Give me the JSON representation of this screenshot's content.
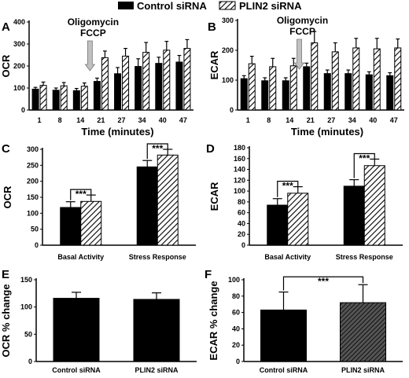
{
  "legend": {
    "items": [
      {
        "label": "Control siRNA",
        "pattern": "solid"
      },
      {
        "label": "PLIN2 siRNA",
        "pattern": "hatched"
      }
    ]
  },
  "colors": {
    "control": "#000000",
    "plin2_hatch": "#000000",
    "arrow": "#c0c0c0",
    "background": "#ffffff"
  },
  "chart_data": [
    {
      "panel": "A",
      "type": "bar",
      "ylabel": "OCR",
      "xlabel": "Time (minutes)",
      "ylim": [
        0,
        400
      ],
      "yticks": [
        0,
        100,
        200,
        300,
        400
      ],
      "categories": [
        "1",
        "8",
        "14",
        "21",
        "27",
        "34",
        "40",
        "47"
      ],
      "series": [
        {
          "name": "Control siRNA",
          "values": [
            95,
            90,
            88,
            130,
            165,
            198,
            212,
            218
          ],
          "errors": [
            8,
            10,
            10,
            15,
            28,
            35,
            28,
            30
          ]
        },
        {
          "name": "PLIN2 siRNA",
          "values": [
            112,
            110,
            108,
            238,
            245,
            262,
            272,
            280
          ],
          "errors": [
            15,
            15,
            15,
            30,
            35,
            45,
            40,
            40
          ]
        }
      ],
      "annotation": {
        "lines": [
          "Oligomycin",
          "FCCP"
        ],
        "arrow_before_category": "21"
      }
    },
    {
      "panel": "B",
      "type": "bar",
      "ylabel": "ECAR",
      "xlabel": "Time (minutes)",
      "ylim": [
        0,
        300
      ],
      "yticks": [
        0,
        100,
        200,
        300
      ],
      "categories": [
        "1",
        "8",
        "14",
        "21",
        "27",
        "34",
        "40",
        "47"
      ],
      "series": [
        {
          "name": "Control siRNA",
          "values": [
            105,
            98,
            98,
            145,
            122,
            122,
            118,
            115
          ],
          "errors": [
            10,
            10,
            10,
            12,
            12,
            12,
            10,
            10
          ]
        },
        {
          "name": "PLIN2 siRNA",
          "values": [
            155,
            145,
            148,
            225,
            195,
            208,
            205,
            208
          ],
          "errors": [
            25,
            28,
            25,
            38,
            30,
            32,
            35,
            30
          ]
        }
      ],
      "annotation": {
        "lines": [
          "Oligomycin",
          "FCCP"
        ],
        "arrow_before_category": "21"
      }
    },
    {
      "panel": "C",
      "type": "bar",
      "ylabel": "OCR",
      "xlabel": "",
      "ylim": [
        0,
        300
      ],
      "yticks": [
        0,
        50,
        100,
        150,
        200,
        250,
        300
      ],
      "categories": [
        "Basal Activity",
        "Stress Response"
      ],
      "series": [
        {
          "name": "Control siRNA",
          "values": [
            118,
            245
          ],
          "errors": [
            18,
            20
          ]
        },
        {
          "name": "PLIN2 siRNA",
          "values": [
            137,
            282
          ],
          "errors": [
            20,
            18
          ]
        }
      ],
      "significance": [
        {
          "category": "Basal Activity",
          "label": "***"
        },
        {
          "category": "Stress Response",
          "label": "***"
        }
      ]
    },
    {
      "panel": "D",
      "type": "bar",
      "ylabel": "ECAR",
      "xlabel": "",
      "ylim": [
        0,
        180
      ],
      "yticks": [
        0,
        20,
        40,
        60,
        80,
        100,
        120,
        140,
        160,
        180
      ],
      "categories": [
        "Basal Activity",
        "Stress Response"
      ],
      "series": [
        {
          "name": "Control siRNA",
          "values": [
            74,
            109
          ],
          "errors": [
            12,
            12
          ]
        },
        {
          "name": "PLIN2 siRNA",
          "values": [
            96,
            147
          ],
          "errors": [
            12,
            12
          ]
        }
      ],
      "significance": [
        {
          "category": "Basal Activity",
          "label": "***"
        },
        {
          "category": "Stress Response",
          "label": "***"
        }
      ]
    },
    {
      "panel": "E",
      "type": "bar",
      "ylabel": "OCR % change",
      "xlabel": "",
      "ylim": [
        0,
        150
      ],
      "yticks": [
        0,
        50,
        100,
        150
      ],
      "categories": [
        "Control siRNA",
        "PLIN2 siRNA"
      ],
      "series": [
        {
          "name": "",
          "values": [
            116,
            114
          ],
          "errors": [
            11,
            12
          ]
        }
      ],
      "patterns": [
        "solid",
        "solid"
      ]
    },
    {
      "panel": "F",
      "type": "bar",
      "ylabel": "ECAR % change",
      "xlabel": "",
      "ylim": [
        0,
        100
      ],
      "yticks": [
        0,
        20,
        40,
        60,
        80,
        100
      ],
      "categories": [
        "Control siRNA",
        "PLIN2 siRNA"
      ],
      "series": [
        {
          "name": "",
          "values": [
            63,
            72
          ],
          "errors": [
            22,
            22
          ]
        }
      ],
      "patterns": [
        "solid",
        "hatched"
      ],
      "significance": [
        {
          "between": [
            "Control siRNA",
            "PLIN2 siRNA"
          ],
          "label": "***"
        }
      ]
    }
  ]
}
